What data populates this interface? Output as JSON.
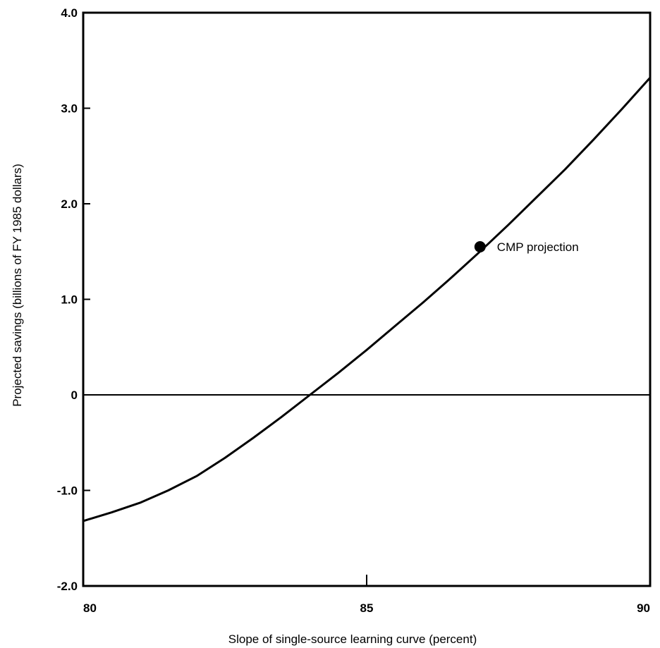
{
  "chart_data": {
    "type": "line",
    "title": "",
    "xlabel": "Slope of single-source learning curve (percent)",
    "ylabel": "Projected savings (billions of FY 1985 dollars)",
    "xlim": [
      80,
      90
    ],
    "ylim": [
      -2.0,
      4.0
    ],
    "xticks": [
      {
        "value": 80,
        "label": "80"
      },
      {
        "value": 85,
        "label": "85"
      },
      {
        "value": 90,
        "label": "90"
      }
    ],
    "yticks": [
      {
        "value": 4.0,
        "label": "4.0"
      },
      {
        "value": 3.0,
        "label": "3.0"
      },
      {
        "value": 2.0,
        "label": "2.0"
      },
      {
        "value": 1.0,
        "label": "1.0"
      },
      {
        "value": 0,
        "label": "0"
      },
      {
        "value": -1.0,
        "label": "-1.0"
      },
      {
        "value": -2.0,
        "label": "-2.0"
      }
    ],
    "zero_line": 0,
    "grid": false,
    "series": [
      {
        "x": [
          80,
          80.5,
          81,
          81.5,
          82,
          82.5,
          83,
          83.5,
          84,
          84.5,
          85,
          85.5,
          86,
          86.5,
          87,
          87.5,
          88,
          88.5,
          89,
          89.5,
          90
        ],
        "y": [
          -1.32,
          -1.23,
          -1.13,
          -1.0,
          -0.85,
          -0.66,
          -0.45,
          -0.23,
          0.0,
          0.23,
          0.47,
          0.72,
          0.97,
          1.23,
          1.5,
          1.78,
          2.07,
          2.36,
          2.67,
          2.99,
          3.32
        ]
      }
    ],
    "annotations": [
      {
        "text": "CMP projection",
        "x": 87.0,
        "y": 1.55
      }
    ]
  }
}
